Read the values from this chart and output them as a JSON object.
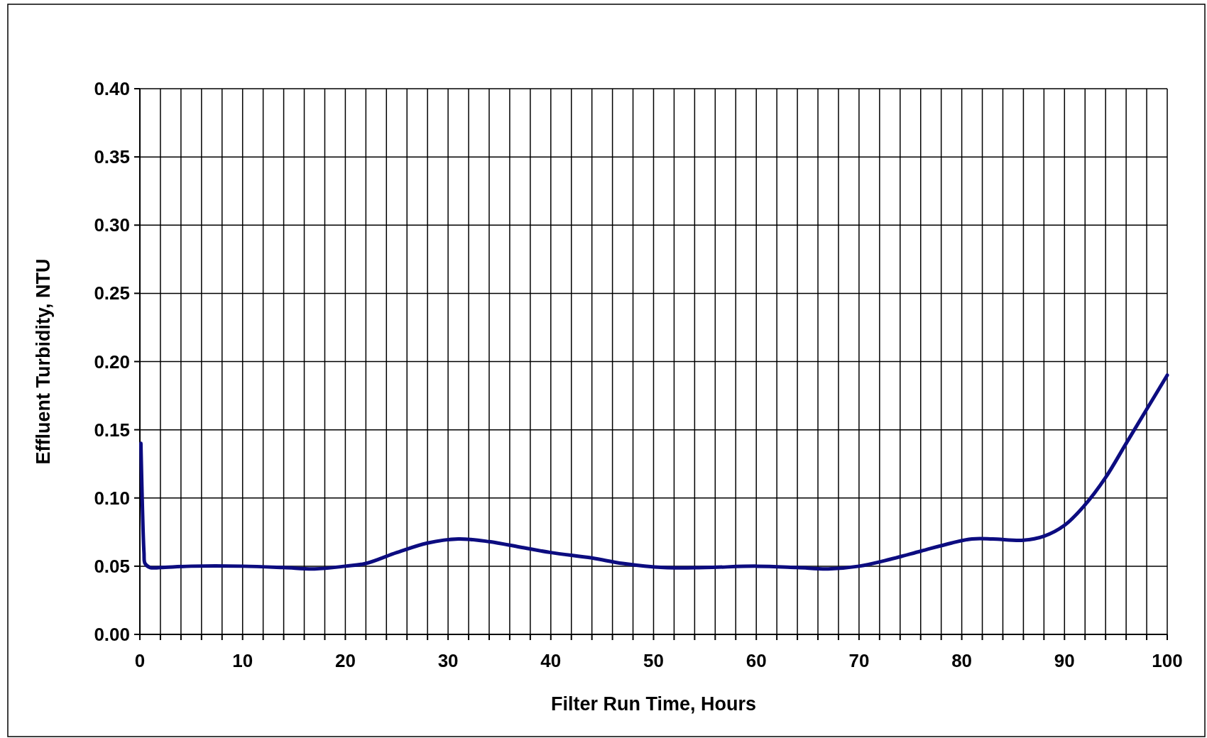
{
  "chart_data": {
    "type": "line",
    "xlabel": "Filter Run Time, Hours",
    "ylabel": "Effluent Turbidity, NTU",
    "x": [
      0.1,
      0.4,
      0.5,
      1,
      2,
      5,
      10,
      14,
      17,
      20,
      22,
      25,
      28,
      31,
      34,
      37,
      40,
      44,
      47,
      51,
      55,
      60,
      64,
      67,
      70,
      73,
      76,
      79,
      81,
      83,
      86,
      88,
      90,
      92,
      94,
      96,
      98,
      100
    ],
    "series": [
      {
        "color": "#0c0c80",
        "values": [
          0.14,
          0.06,
          0.052,
          0.049,
          0.049,
          0.05,
          0.05,
          0.049,
          0.048,
          0.05,
          0.052,
          0.06,
          0.067,
          0.07,
          0.068,
          0.064,
          0.06,
          0.056,
          0.052,
          0.049,
          0.049,
          0.05,
          0.049,
          0.048,
          0.05,
          0.055,
          0.061,
          0.067,
          0.07,
          0.07,
          0.069,
          0.072,
          0.08,
          0.095,
          0.115,
          0.14,
          0.165,
          0.19
        ]
      }
    ],
    "xlim": [
      0,
      100
    ],
    "ylim": [
      0,
      0.4
    ],
    "xticks": [
      0,
      {
        "value": 2,
        "label": null
      },
      {
        "value": 4,
        "label": null
      },
      {
        "value": 6,
        "label": null
      },
      {
        "value": 8,
        "label": null
      },
      10,
      {
        "value": 12,
        "label": null
      },
      {
        "value": 14,
        "label": null
      },
      {
        "value": 16,
        "label": null
      },
      {
        "value": 18,
        "label": null
      },
      20,
      {
        "value": 22,
        "label": null
      },
      {
        "value": 24,
        "label": null
      },
      {
        "value": 26,
        "label": null
      },
      {
        "value": 28,
        "label": null
      },
      30,
      {
        "value": 32,
        "label": null
      },
      {
        "value": 34,
        "label": null
      },
      {
        "value": 36,
        "label": null
      },
      {
        "value": 38,
        "label": null
      },
      40,
      {
        "value": 42,
        "label": null
      },
      {
        "value": 44,
        "label": null
      },
      {
        "value": 46,
        "label": null
      },
      {
        "value": 48,
        "label": null
      },
      50,
      {
        "value": 52,
        "label": null
      },
      {
        "value": 54,
        "label": null
      },
      {
        "value": 56,
        "label": null
      },
      {
        "value": 58,
        "label": null
      },
      60,
      {
        "value": 62,
        "label": null
      },
      {
        "value": 64,
        "label": null
      },
      {
        "value": 66,
        "label": null
      },
      {
        "value": 68,
        "label": null
      },
      70,
      {
        "value": 72,
        "label": null
      },
      {
        "value": 74,
        "label": null
      },
      {
        "value": 76,
        "label": null
      },
      {
        "value": 78,
        "label": null
      },
      80,
      {
        "value": 82,
        "label": null
      },
      {
        "value": 84,
        "label": null
      },
      {
        "value": 86,
        "label": null
      },
      {
        "value": 88,
        "label": null
      },
      90,
      {
        "value": 92,
        "label": null
      },
      {
        "value": 94,
        "label": null
      },
      {
        "value": 96,
        "label": null
      },
      {
        "value": 98,
        "label": null
      },
      100
    ],
    "yticks": [
      {
        "value": 0,
        "label": "0.00"
      },
      {
        "value": 0.05,
        "label": "0.05"
      },
      {
        "value": 0.1,
        "label": "0.10"
      },
      {
        "value": 0.15,
        "label": "0.15"
      },
      {
        "value": 0.2,
        "label": "0.20"
      },
      {
        "value": 0.25,
        "label": "0.25"
      },
      {
        "value": 0.3,
        "label": "0.30"
      },
      {
        "value": 0.35,
        "label": "0.35"
      },
      {
        "value": 0.4,
        "label": "0.40"
      }
    ],
    "grid": true,
    "marker": "none",
    "line_style": "solid"
  }
}
